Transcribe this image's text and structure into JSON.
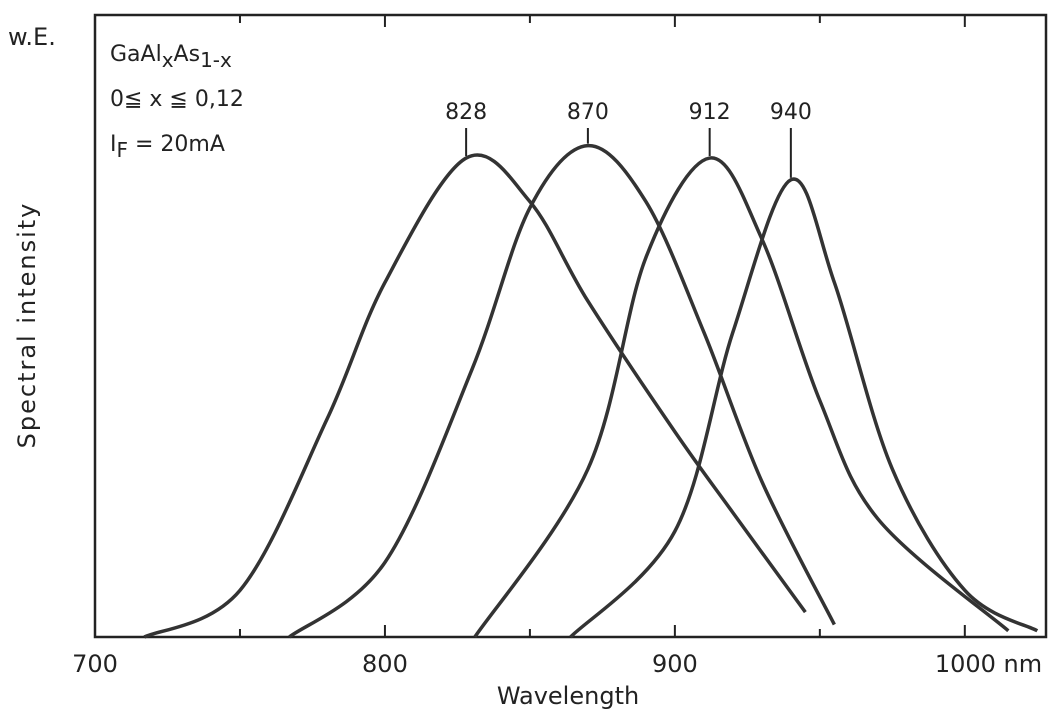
{
  "chart_data": {
    "type": "line",
    "y_label": "Spectral intensity",
    "y_unit": "w.E.",
    "x_label": "Wavelength",
    "annotations": [
      {
        "parts": [
          {
            "text": "GaAl"
          },
          {
            "text": "x",
            "sub": true
          },
          {
            "text": "As"
          },
          {
            "text": "1-x",
            "sub": true
          }
        ]
      },
      {
        "parts": [
          {
            "text": "0≦ x ≦ 0,12"
          }
        ]
      },
      {
        "parts": [
          {
            "text": "I"
          },
          {
            "text": "F",
            "sub": true
          },
          {
            "text": " = 20mA"
          }
        ]
      }
    ],
    "xlim": [
      700,
      1028
    ],
    "ylim": [
      0,
      100
    ],
    "xticks": [
      700,
      800,
      900,
      {
        "value": 1000,
        "label": "1000 nm"
      }
    ],
    "xminor": [
      750,
      850,
      950
    ],
    "series": [
      {
        "color": "#333333",
        "peak": 828,
        "x": [
          717,
          750,
          780,
          800,
          828,
          850,
          870,
          900,
          920,
          945
        ],
        "values": [
          0,
          7.5,
          35,
          57,
          77,
          70,
          54,
          33,
          20,
          4
        ]
      },
      {
        "color": "#333333",
        "peak": 870,
        "x": [
          767,
          800,
          830,
          850,
          870,
          890,
          910,
          930,
          955
        ],
        "values": [
          0,
          12,
          43,
          69,
          79,
          70,
          49,
          25,
          2
        ]
      },
      {
        "color": "#333333",
        "peak": 912,
        "x": [
          831,
          870,
          890,
          912,
          930,
          950,
          970,
          1015
        ],
        "values": [
          0,
          27,
          61,
          77,
          64,
          38,
          19,
          1
        ]
      },
      {
        "color": "#333333",
        "peak": 940,
        "x": [
          864,
          900,
          920,
          940,
          955,
          975,
          1000,
          1025
        ],
        "values": [
          0,
          17,
          49,
          73.5,
          57,
          27,
          7.5,
          1
        ]
      }
    ]
  }
}
